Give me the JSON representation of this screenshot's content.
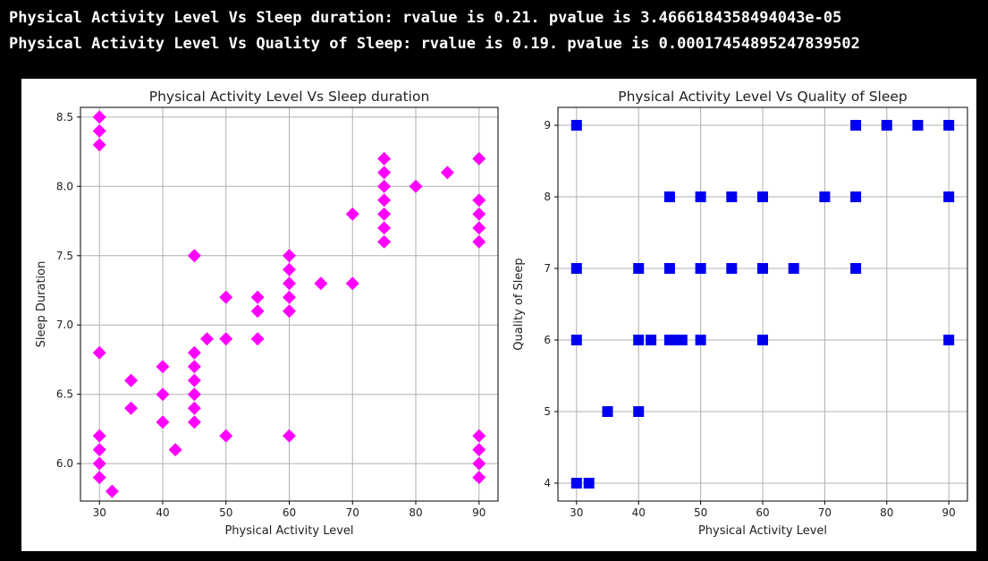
{
  "output_lines": [
    "Physical Activity Level Vs Sleep duration: rvalue is 0.21. pvalue is 3.4666184358494043e-05",
    "Physical Activity Level Vs Quality of Sleep: rvalue is 0.19. pvalue is 0.00017454895247839502"
  ],
  "chart_data": [
    {
      "type": "scatter",
      "title": "Physical Activity Level Vs Sleep duration",
      "xlabel": "Physical Activity Level",
      "ylabel": "Sleep Duration",
      "xlim": [
        27,
        93
      ],
      "ylim": [
        5.73,
        8.57
      ],
      "xticks": [
        30,
        40,
        50,
        60,
        70,
        80,
        90
      ],
      "yticks": [
        6.0,
        6.5,
        7.0,
        7.5,
        8.0,
        8.5
      ],
      "ytick_labels": [
        "6.0",
        "6.5",
        "7.0",
        "7.5",
        "8.0",
        "8.5"
      ],
      "grid": true,
      "marker": "diamond",
      "color": "#ff00ff",
      "points": [
        [
          30,
          8.5
        ],
        [
          30,
          8.4
        ],
        [
          30,
          8.3
        ],
        [
          30,
          6.8
        ],
        [
          30,
          6.2
        ],
        [
          30,
          6.1
        ],
        [
          30,
          6.0
        ],
        [
          30,
          5.9
        ],
        [
          32,
          5.8
        ],
        [
          35,
          6.6
        ],
        [
          35,
          6.4
        ],
        [
          40,
          6.7
        ],
        [
          40,
          6.5
        ],
        [
          40,
          6.3
        ],
        [
          42,
          6.1
        ],
        [
          45,
          7.5
        ],
        [
          45,
          6.8
        ],
        [
          45,
          6.7
        ],
        [
          45,
          6.6
        ],
        [
          45,
          6.5
        ],
        [
          45,
          6.4
        ],
        [
          45,
          6.3
        ],
        [
          47,
          6.9
        ],
        [
          50,
          7.2
        ],
        [
          50,
          6.9
        ],
        [
          50,
          6.2
        ],
        [
          55,
          7.2
        ],
        [
          55,
          7.1
        ],
        [
          55,
          6.9
        ],
        [
          60,
          7.5
        ],
        [
          60,
          7.4
        ],
        [
          60,
          7.3
        ],
        [
          60,
          7.2
        ],
        [
          60,
          7.1
        ],
        [
          60,
          6.2
        ],
        [
          65,
          7.3
        ],
        [
          70,
          7.8
        ],
        [
          70,
          7.3
        ],
        [
          75,
          8.2
        ],
        [
          75,
          8.1
        ],
        [
          75,
          8.0
        ],
        [
          75,
          7.9
        ],
        [
          75,
          7.8
        ],
        [
          75,
          7.7
        ],
        [
          75,
          7.6
        ],
        [
          80,
          8.0
        ],
        [
          85,
          8.1
        ],
        [
          90,
          8.2
        ],
        [
          90,
          7.9
        ],
        [
          90,
          7.8
        ],
        [
          90,
          7.7
        ],
        [
          90,
          7.6
        ],
        [
          90,
          6.2
        ],
        [
          90,
          6.1
        ],
        [
          90,
          6.0
        ],
        [
          90,
          5.9
        ]
      ]
    },
    {
      "type": "scatter",
      "title": "Physical Activity Level Vs Quality of Sleep",
      "xlabel": "Physical Activity Level",
      "ylabel": "Quality of Sleep",
      "xlim": [
        27,
        93
      ],
      "ylim": [
        3.75,
        9.25
      ],
      "xticks": [
        30,
        40,
        50,
        60,
        70,
        80,
        90
      ],
      "yticks": [
        4,
        5,
        6,
        7,
        8,
        9
      ],
      "ytick_labels": [
        "4",
        "5",
        "6",
        "7",
        "8",
        "9"
      ],
      "grid": true,
      "marker": "square",
      "color": "#0000ee",
      "points": [
        [
          30,
          9
        ],
        [
          30,
          7
        ],
        [
          30,
          6
        ],
        [
          30,
          4
        ],
        [
          32,
          4
        ],
        [
          35,
          5
        ],
        [
          40,
          7
        ],
        [
          40,
          6
        ],
        [
          40,
          5
        ],
        [
          42,
          6
        ],
        [
          45,
          8
        ],
        [
          45,
          7
        ],
        [
          45,
          6
        ],
        [
          46,
          6
        ],
        [
          47,
          6
        ],
        [
          50,
          8
        ],
        [
          50,
          7
        ],
        [
          50,
          6
        ],
        [
          55,
          8
        ],
        [
          55,
          7
        ],
        [
          60,
          8
        ],
        [
          60,
          7
        ],
        [
          60,
          6
        ],
        [
          65,
          7
        ],
        [
          70,
          8
        ],
        [
          75,
          9
        ],
        [
          75,
          8
        ],
        [
          75,
          7
        ],
        [
          80,
          9
        ],
        [
          85,
          9
        ],
        [
          90,
          9
        ],
        [
          90,
          8
        ],
        [
          90,
          6
        ]
      ]
    }
  ]
}
